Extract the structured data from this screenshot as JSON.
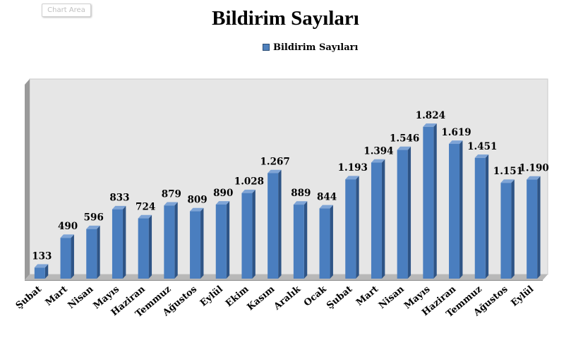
{
  "ui": {
    "chart_area_tag": "Chart Area"
  },
  "colors": {
    "bar_front": "#4a7ebf",
    "bar_side": "#2e5486",
    "bar_top": "#7ea4d6",
    "plot_back": "#e6e6e6",
    "wall_left": "#9a9a9a",
    "floor": "#b8b8b8"
  },
  "chart_data": {
    "type": "bar",
    "title": "Bildirim Sayıları",
    "legend_position": "top",
    "grid": false,
    "three_d": true,
    "series": [
      {
        "name": "Bildirim Sayıları",
        "values": [
          133,
          490,
          596,
          833,
          724,
          879,
          809,
          890,
          1028,
          1267,
          889,
          844,
          1193,
          1394,
          1546,
          1824,
          1619,
          1451,
          1151,
          1190
        ],
        "labels": [
          "133",
          "490",
          "596",
          "833",
          "724",
          "879",
          "809",
          "890",
          "1.028",
          "1.267",
          "889",
          "844",
          "1.193",
          "1.394",
          "1.546",
          "1.824",
          "1.619",
          "1.451",
          "1.151",
          "1.190"
        ]
      }
    ],
    "categories": [
      "Şubat",
      "Mart",
      "Nisan",
      "Mayıs",
      "Haziran",
      "Temmuz",
      "Ağustos",
      "Eylül",
      "Ekim",
      "Kasım",
      "Aralık",
      "Ocak",
      "Şubat",
      "Mart",
      "Nisan",
      "Mayıs",
      "Haziran",
      "Temmuz",
      "Ağustos",
      "Eylül"
    ],
    "ylim": [
      0,
      2000
    ]
  }
}
